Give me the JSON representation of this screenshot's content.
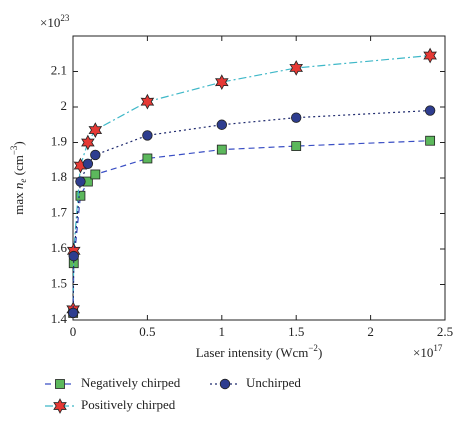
{
  "chart_data": {
    "type": "line",
    "x": [
      0.001,
      0.005,
      0.05,
      0.1,
      0.15,
      0.5,
      1,
      1.5,
      2.4
    ],
    "series": [
      {
        "name": "Negatively chirped",
        "color": "#3a4fc4",
        "marker_color": "#5cb85c",
        "marker": "square",
        "dash": "6 4",
        "values": [
          1.42,
          1.56,
          1.75,
          1.79,
          1.81,
          1.855,
          1.88,
          1.89,
          1.905
        ]
      },
      {
        "name": "Positively chirped",
        "color": "#3fb8c8",
        "marker_color": "#e53935",
        "marker": "star",
        "dash": "8 3 2 3",
        "values": [
          1.43,
          1.595,
          1.835,
          1.9,
          1.935,
          2.015,
          2.07,
          2.11,
          2.145
        ]
      },
      {
        "name": "Unchirped",
        "color": "#1f2a6e",
        "marker_color": "#2e3d8f",
        "marker": "circle",
        "dash": "2 3",
        "values": [
          1.42,
          1.58,
          1.79,
          1.84,
          1.865,
          1.92,
          1.95,
          1.97,
          1.99
        ]
      }
    ],
    "xlim": [
      0,
      2.5
    ],
    "xticks": [
      0,
      0.5,
      1,
      1.5,
      2,
      2.5
    ],
    "ylim": [
      1.4,
      2.2
    ],
    "yticks": [
      1.4,
      1.5,
      1.6,
      1.7,
      1.8,
      1.9,
      2,
      2.1
    ],
    "x_multiplier": [
      "×10",
      "17"
    ],
    "y_multiplier": [
      "×10",
      "23"
    ],
    "xlabel": [
      "Laser intensity (Wcm",
      "−2",
      ")"
    ],
    "ylabel": [
      "max ",
      "n",
      "e",
      " (cm",
      "−3",
      ")"
    ]
  }
}
